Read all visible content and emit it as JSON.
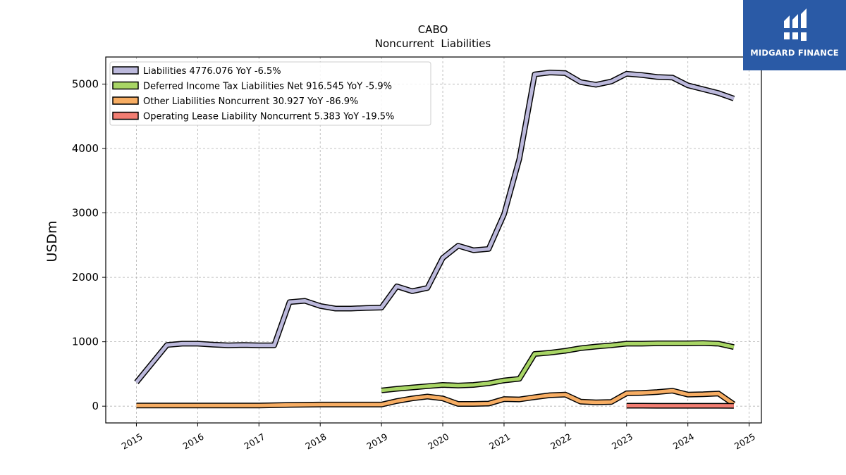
{
  "brand": {
    "name": "MIDGARD FINANCE",
    "bg_color": "#2a5aa6"
  },
  "chart_data": {
    "type": "line",
    "title": "CABO",
    "subtitle": "Noncurrent  Liabilities",
    "ylabel": "USDm",
    "xlabel": "",
    "xlim": [
      2014.5,
      2025.2
    ],
    "ylim": [
      -260,
      5420
    ],
    "x_ticks": [
      2015,
      2016,
      2017,
      2018,
      2019,
      2020,
      2021,
      2022,
      2023,
      2024,
      2025
    ],
    "y_ticks": [
      0,
      1000,
      2000,
      3000,
      4000,
      5000
    ],
    "grid": true,
    "legend_position": "top-left",
    "series": [
      {
        "name": "Liabilities",
        "legend_label": "Liabilities  4776.076 YoY -6.5%",
        "color": "#bcb9dc",
        "points": [
          [
            2015.0,
            370
          ],
          [
            2015.5,
            950
          ],
          [
            2015.75,
            970
          ],
          [
            2016.0,
            970
          ],
          [
            2016.25,
            955
          ],
          [
            2016.5,
            945
          ],
          [
            2016.75,
            950
          ],
          [
            2017.0,
            945
          ],
          [
            2017.25,
            945
          ],
          [
            2017.5,
            1615
          ],
          [
            2017.75,
            1635
          ],
          [
            2018.0,
            1555
          ],
          [
            2018.25,
            1515
          ],
          [
            2018.5,
            1515
          ],
          [
            2018.75,
            1525
          ],
          [
            2019.0,
            1530
          ],
          [
            2019.25,
            1860
          ],
          [
            2019.5,
            1785
          ],
          [
            2019.75,
            1835
          ],
          [
            2020.0,
            2300
          ],
          [
            2020.25,
            2490
          ],
          [
            2020.5,
            2420
          ],
          [
            2020.75,
            2440
          ],
          [
            2021.0,
            2980
          ],
          [
            2021.25,
            3840
          ],
          [
            2021.5,
            5150
          ],
          [
            2021.75,
            5180
          ],
          [
            2022.0,
            5170
          ],
          [
            2022.25,
            5030
          ],
          [
            2022.5,
            4990
          ],
          [
            2022.75,
            5040
          ],
          [
            2023.0,
            5160
          ],
          [
            2023.25,
            5140
          ],
          [
            2023.5,
            5110
          ],
          [
            2023.75,
            5100
          ],
          [
            2024.0,
            4980
          ],
          [
            2024.25,
            4920
          ],
          [
            2024.5,
            4860
          ],
          [
            2024.75,
            4776
          ]
        ]
      },
      {
        "name": "Deferred Income Tax Liabilities Net",
        "legend_label": "Deferred Income Tax Liabilities Net  916.545 YoY -5.9%",
        "color": "#a8d565",
        "points": [
          [
            2019.0,
            245
          ],
          [
            2019.25,
            270
          ],
          [
            2019.5,
            290
          ],
          [
            2019.75,
            310
          ],
          [
            2020.0,
            330
          ],
          [
            2020.25,
            320
          ],
          [
            2020.5,
            330
          ],
          [
            2020.75,
            355
          ],
          [
            2021.0,
            400
          ],
          [
            2021.25,
            425
          ],
          [
            2021.5,
            810
          ],
          [
            2021.75,
            830
          ],
          [
            2022.0,
            860
          ],
          [
            2022.25,
            900
          ],
          [
            2022.5,
            925
          ],
          [
            2022.75,
            945
          ],
          [
            2023.0,
            970
          ],
          [
            2023.25,
            970
          ],
          [
            2023.5,
            975
          ],
          [
            2023.75,
            975
          ],
          [
            2024.0,
            975
          ],
          [
            2024.25,
            980
          ],
          [
            2024.5,
            970
          ],
          [
            2024.75,
            917
          ]
        ]
      },
      {
        "name": "Other Liabilities Noncurrent",
        "legend_label": "Other Liabilities Noncurrent  30.927 YoY -86.9%",
        "color": "#f7ad63",
        "points": [
          [
            2015.0,
            10
          ],
          [
            2015.5,
            10
          ],
          [
            2016.0,
            10
          ],
          [
            2016.5,
            10
          ],
          [
            2017.0,
            10
          ],
          [
            2017.5,
            20
          ],
          [
            2018.0,
            25
          ],
          [
            2018.5,
            25
          ],
          [
            2019.0,
            25
          ],
          [
            2019.25,
            80
          ],
          [
            2019.5,
            120
          ],
          [
            2019.75,
            150
          ],
          [
            2020.0,
            120
          ],
          [
            2020.25,
            35
          ],
          [
            2020.5,
            35
          ],
          [
            2020.75,
            40
          ],
          [
            2021.0,
            110
          ],
          [
            2021.25,
            105
          ],
          [
            2021.5,
            140
          ],
          [
            2021.75,
            170
          ],
          [
            2022.0,
            180
          ],
          [
            2022.25,
            70
          ],
          [
            2022.5,
            60
          ],
          [
            2022.75,
            65
          ],
          [
            2023.0,
            200
          ],
          [
            2023.25,
            205
          ],
          [
            2023.5,
            220
          ],
          [
            2023.75,
            240
          ],
          [
            2024.0,
            180
          ],
          [
            2024.25,
            185
          ],
          [
            2024.5,
            195
          ],
          [
            2024.75,
            31
          ]
        ]
      },
      {
        "name": "Operating Lease Liability Noncurrent",
        "legend_label": "Operating Lease Liability Noncurrent  5.383 YoY -19.5%",
        "color": "#f27d72",
        "points": [
          [
            2023.0,
            8
          ],
          [
            2023.25,
            8
          ],
          [
            2023.5,
            7
          ],
          [
            2023.75,
            7
          ],
          [
            2024.0,
            7
          ],
          [
            2024.25,
            6
          ],
          [
            2024.5,
            6
          ],
          [
            2024.75,
            5.383
          ]
        ]
      }
    ]
  }
}
